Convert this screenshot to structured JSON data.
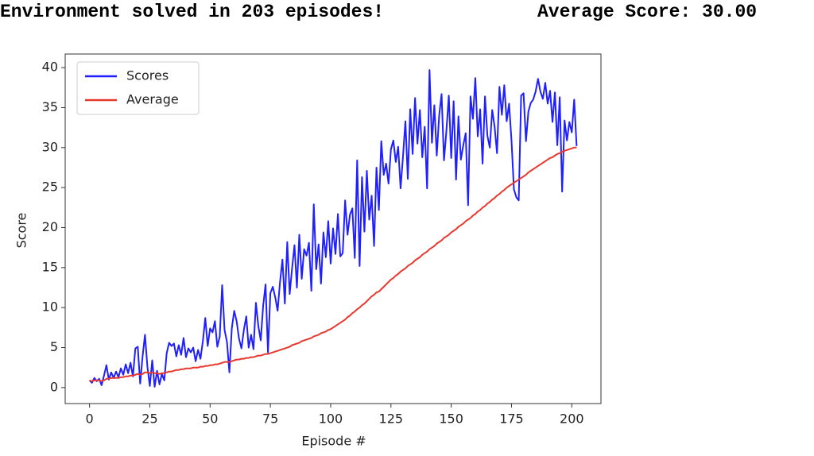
{
  "output": {
    "message": "Environment solved in 203 episodes!",
    "average": "Average Score: 30.00"
  },
  "chart_data": {
    "type": "line",
    "xlabel": "Episode #",
    "ylabel": "Score",
    "xlim": [
      -10.1,
      212.1
    ],
    "ylim": [
      -2,
      41.7
    ],
    "xticks": [
      0,
      25,
      50,
      75,
      100,
      125,
      150,
      175,
      200
    ],
    "yticks": [
      0,
      5,
      10,
      15,
      20,
      25,
      30,
      35,
      40
    ],
    "legend": "upper left",
    "grid": false,
    "x": [
      0,
      1,
      2,
      3,
      4,
      5,
      6,
      7,
      8,
      9,
      10,
      11,
      12,
      13,
      14,
      15,
      16,
      17,
      18,
      19,
      20,
      21,
      22,
      23,
      24,
      25,
      26,
      27,
      28,
      29,
      30,
      31,
      32,
      33,
      34,
      35,
      36,
      37,
      38,
      39,
      40,
      41,
      42,
      43,
      44,
      45,
      46,
      47,
      48,
      49,
      50,
      51,
      52,
      53,
      54,
      55,
      56,
      57,
      58,
      59,
      60,
      61,
      62,
      63,
      64,
      65,
      66,
      67,
      68,
      69,
      70,
      71,
      72,
      73,
      74,
      75,
      76,
      77,
      78,
      79,
      80,
      81,
      82,
      83,
      84,
      85,
      86,
      87,
      88,
      89,
      90,
      91,
      92,
      93,
      94,
      95,
      96,
      97,
      98,
      99,
      100,
      101,
      102,
      103,
      104,
      105,
      106,
      107,
      108,
      109,
      110,
      111,
      112,
      113,
      114,
      115,
      116,
      117,
      118,
      119,
      120,
      121,
      122,
      123,
      124,
      125,
      126,
      127,
      128,
      129,
      130,
      131,
      132,
      133,
      134,
      135,
      136,
      137,
      138,
      139,
      140,
      141,
      142,
      143,
      144,
      145,
      146,
      147,
      148,
      149,
      150,
      151,
      152,
      153,
      154,
      155,
      156,
      157,
      158,
      159,
      160,
      161,
      162,
      163,
      164,
      165,
      166,
      167,
      168,
      169,
      170,
      171,
      172,
      173,
      174,
      175,
      176,
      177,
      178,
      179,
      180,
      181,
      182,
      183,
      184,
      185,
      186,
      187,
      188,
      189,
      190,
      191,
      192,
      193,
      194,
      195,
      196,
      197,
      198,
      199,
      200,
      201,
      202
    ],
    "series": [
      {
        "name": "Scores",
        "color": "#1f1fff",
        "values": [
          0.9,
          0.6,
          1.2,
          0.8,
          1.1,
          0.3,
          1.5,
          2.8,
          1.0,
          1.9,
          1.2,
          2.0,
          1.3,
          2.4,
          1.6,
          2.9,
          1.8,
          3.1,
          1.4,
          4.9,
          5.1,
          0.5,
          3.9,
          6.6,
          2.6,
          0.2,
          3.4,
          0.1,
          2.1,
          0.4,
          1.7,
          0.9,
          4.3,
          5.6,
          5.2,
          5.5,
          3.9,
          5.3,
          4.1,
          6.2,
          3.8,
          4.9,
          4.4,
          5.0,
          3.3,
          4.7,
          3.6,
          5.8,
          8.7,
          5.2,
          7.4,
          6.9,
          8.3,
          5.1,
          6.4,
          12.8,
          7.2,
          5.7,
          1.9,
          7.4,
          9.6,
          8.3,
          6.1,
          4.9,
          7.2,
          8.9,
          5.0,
          6.6,
          4.8,
          10.6,
          7.7,
          5.9,
          10.2,
          12.9,
          4.4,
          11.8,
          12.6,
          11.3,
          9.6,
          13.2,
          16.0,
          10.5,
          18.2,
          11.7,
          14.9,
          17.8,
          12.5,
          19.1,
          13.6,
          17.3,
          16.5,
          18.1,
          12.1,
          22.9,
          14.8,
          17.9,
          13.0,
          19.4,
          16.3,
          20.8,
          15.5,
          19.9,
          16.7,
          21.7,
          16.4,
          16.8,
          23.4,
          19.1,
          21.6,
          22.4,
          16.2,
          28.4,
          15.2,
          26.3,
          19.5,
          27.1,
          21.0,
          24.0,
          17.7,
          27.5,
          22.2,
          30.8,
          26.6,
          28.0,
          25.5,
          29.8,
          30.9,
          28.2,
          30.1,
          24.9,
          28.9,
          33.3,
          26.1,
          34.8,
          29.2,
          36.2,
          30.5,
          34.7,
          28.8,
          32.6,
          24.9,
          39.7,
          30.6,
          35.3,
          29.0,
          34.0,
          36.7,
          28.4,
          32.1,
          36.5,
          28.7,
          35.8,
          26.0,
          33.9,
          28.5,
          30.3,
          31.8,
          22.8,
          36.4,
          33.6,
          38.7,
          31.4,
          34.8,
          28.0,
          36.4,
          31.5,
          30.0,
          34.7,
          32.6,
          29.3,
          37.6,
          34.1,
          37.8,
          33.3,
          35.5,
          30.9,
          24.8,
          23.8,
          23.4,
          36.5,
          36.8,
          30.8,
          34.5,
          35.6,
          36.0,
          37.0,
          38.6,
          37.0,
          36.1,
          38.1,
          35.5,
          37.1,
          33.2,
          36.9,
          30.3,
          36.3,
          24.5,
          33.4,
          30.9,
          33.2,
          31.9,
          36.0,
          30.2
        ]
      },
      {
        "name": "Average",
        "color": "#e8382e",
        "values": [
          0.9,
          0.8,
          0.9,
          0.9,
          0.9,
          0.8,
          0.9,
          1.1,
          1.1,
          1.2,
          1.2,
          1.2,
          1.2,
          1.3,
          1.3,
          1.4,
          1.4,
          1.5,
          1.5,
          1.6,
          1.7,
          1.6,
          1.7,
          1.9,
          1.9,
          1.8,
          1.9,
          1.8,
          1.8,
          1.7,
          1.8,
          1.8,
          1.9,
          2.0,
          2.0,
          2.1,
          2.2,
          2.2,
          2.3,
          2.3,
          2.4,
          2.4,
          2.4,
          2.5,
          2.5,
          2.5,
          2.6,
          2.6,
          2.7,
          2.7,
          2.8,
          2.8,
          2.9,
          2.9,
          3.0,
          3.1,
          3.2,
          3.2,
          3.2,
          3.3,
          3.4,
          3.5,
          3.5,
          3.6,
          3.6,
          3.7,
          3.7,
          3.8,
          3.8,
          3.9,
          4.0,
          4.0,
          4.1,
          4.2,
          4.2,
          4.3,
          4.4,
          4.5,
          4.6,
          4.7,
          4.8,
          4.9,
          5.0,
          5.1,
          5.3,
          5.4,
          5.5,
          5.6,
          5.8,
          5.9,
          6.0,
          6.1,
          6.2,
          6.4,
          6.5,
          6.6,
          6.8,
          6.9,
          7.0,
          7.2,
          7.3,
          7.5,
          7.7,
          7.9,
          8.1,
          8.3,
          8.5,
          8.8,
          9.0,
          9.3,
          9.5,
          9.8,
          10.0,
          10.3,
          10.5,
          10.8,
          11.1,
          11.4,
          11.6,
          11.9,
          12.0,
          12.3,
          12.6,
          12.9,
          13.2,
          13.5,
          13.7,
          14.0,
          14.2,
          14.5,
          14.7,
          14.9,
          15.2,
          15.4,
          15.6,
          15.9,
          16.1,
          16.3,
          16.6,
          16.8,
          17.0,
          17.3,
          17.5,
          17.7,
          18.0,
          18.2,
          18.4,
          18.7,
          18.9,
          19.1,
          19.4,
          19.6,
          19.8,
          20.1,
          20.3,
          20.5,
          20.8,
          21.0,
          21.2,
          21.5,
          21.7,
          22.0,
          22.2,
          22.5,
          22.7,
          23.0,
          23.2,
          23.5,
          23.7,
          24.0,
          24.2,
          24.5,
          24.7,
          25.0,
          25.2,
          25.4,
          25.6,
          25.8,
          26.0,
          26.2,
          26.4,
          26.6,
          26.9,
          27.1,
          27.3,
          27.5,
          27.7,
          27.9,
          28.1,
          28.3,
          28.5,
          28.7,
          28.8,
          29.0,
          29.2,
          29.3,
          29.5,
          29.6,
          29.7,
          29.8,
          29.9,
          30.0,
          30.0
        ]
      }
    ]
  }
}
